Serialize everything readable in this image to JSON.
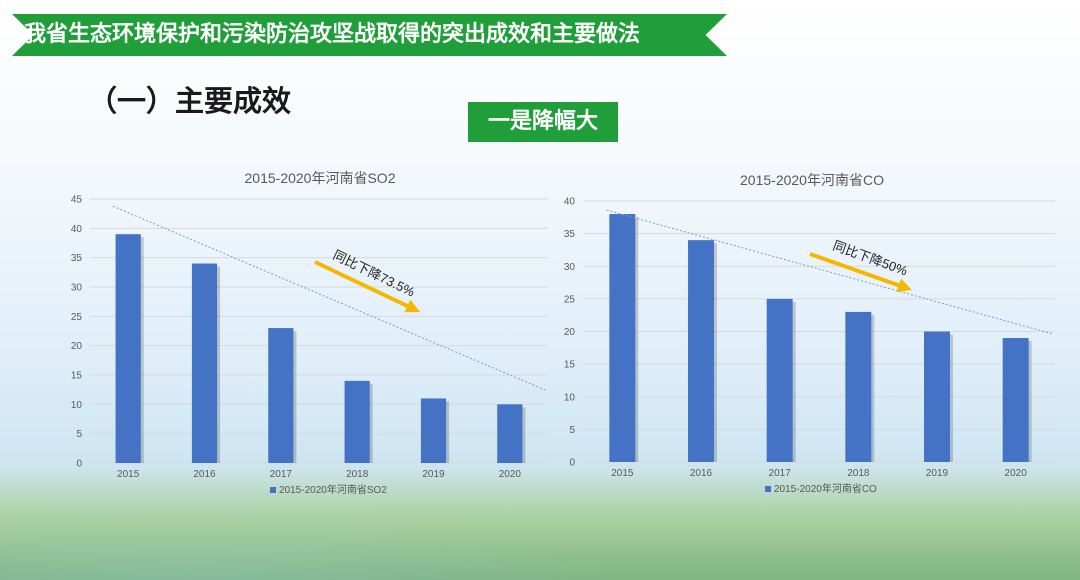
{
  "header": {
    "banner_title": "我省生态环境保护和污染防治攻坚战取得的突出成效和主要做法",
    "section_title": "（一）主要成效",
    "badge_label": "一是降幅大"
  },
  "colors": {
    "accent_green": "#1f9e39",
    "bar_blue": "#4472c4",
    "arrow_yellow": "#f5b800"
  },
  "chart_data": [
    {
      "type": "bar",
      "title": "2015-2020年河南省SO2",
      "categories": [
        "2015",
        "2016",
        "2017",
        "2018",
        "2019",
        "2020"
      ],
      "values": [
        39,
        34,
        23,
        14,
        11,
        10
      ],
      "ylim": [
        0,
        45
      ],
      "yticks": [
        0,
        5,
        10,
        15,
        20,
        25,
        30,
        35,
        40,
        45
      ],
      "legend": "2015-2020年河南省SO2",
      "legend_position": "bottom",
      "annotation": "同比下降73.5%",
      "trendline": true
    },
    {
      "type": "bar",
      "title": "2015-2020年河南省CO",
      "categories": [
        "2015",
        "2016",
        "2017",
        "2018",
        "2019",
        "2020"
      ],
      "values": [
        38,
        34,
        25,
        23,
        20,
        19
      ],
      "ylim": [
        0,
        40
      ],
      "yticks": [
        0,
        5,
        10,
        15,
        20,
        25,
        30,
        35,
        40
      ],
      "legend": "2015-2020年河南省CO",
      "legend_position": "bottom",
      "annotation": "同比下降50%",
      "trendline": true
    }
  ]
}
